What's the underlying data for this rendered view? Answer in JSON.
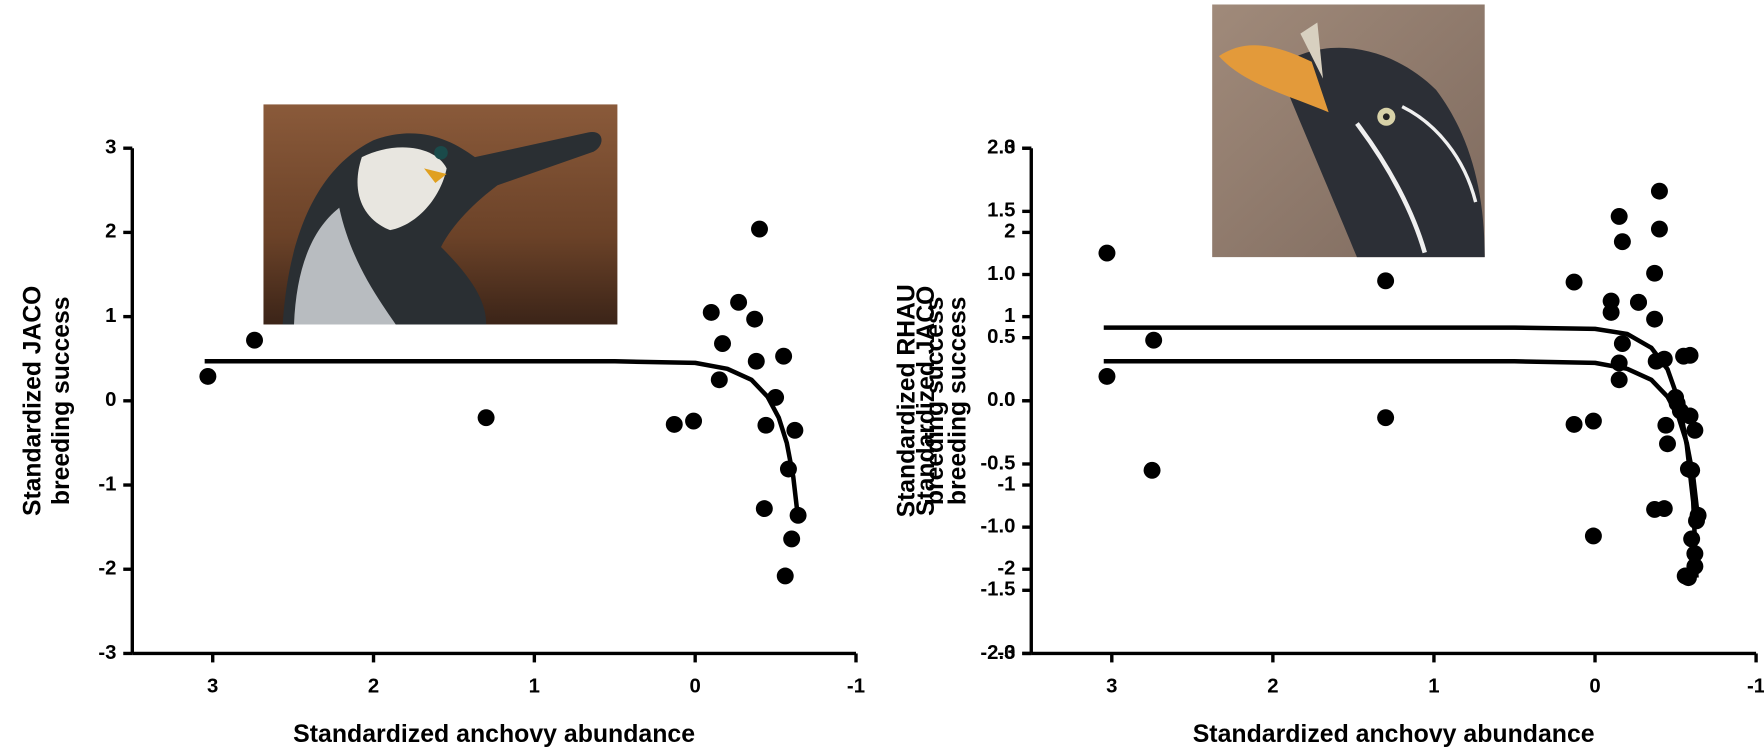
{
  "chart_data": [
    {
      "type": "scatter",
      "xlabel": "Standardized anchovy abundance",
      "ylabel": [
        "Standardized JACO",
        "breeding success"
      ],
      "xlim": [
        3.5,
        -1
      ],
      "xticks": [
        3,
        2,
        1,
        0,
        -1
      ],
      "ylim": [
        -3,
        3
      ],
      "yticks": [
        -3,
        -2,
        -1,
        0,
        1,
        2,
        3
      ],
      "series": [
        {
          "color": "#000000",
          "x": [
            3.03,
            2.74,
            1.3,
            0.13,
            0.01,
            -0.1,
            -0.15,
            -0.17,
            -0.27,
            -0.37,
            -0.4,
            -0.38,
            -0.43,
            -0.44,
            -0.5,
            -0.55,
            -0.56,
            -0.58,
            -0.6,
            -0.62,
            -0.64
          ],
          "values": [
            0.29,
            0.72,
            -0.2,
            -0.28,
            -0.24,
            1.05,
            0.25,
            0.68,
            1.17,
            0.97,
            2.04,
            0.47,
            -1.28,
            -0.29,
            0.04,
            0.53,
            -2.08,
            -0.81,
            -1.64,
            -0.35,
            -1.36
          ],
          "fit": {
            "x": [
              3.05,
              0.5,
              0,
              -0.2,
              -0.35,
              -0.45,
              -0.52,
              -0.57,
              -0.61,
              -0.64
            ],
            "values": [
              0.47,
              0.47,
              0.45,
              0.38,
              0.25,
              0.05,
              -0.2,
              -0.5,
              -0.9,
              -1.4
            ]
          }
        }
      ]
    },
    {
      "type": "scatter",
      "xlabel": "Standardized anchovy abundance",
      "ylabel": [
        "Standardized RHAU",
        "breeding success"
      ],
      "y2label": [
        "Standardized JACO",
        "breeding success"
      ],
      "xlim": [
        3.5,
        -1
      ],
      "xticks": [
        3,
        2,
        1,
        0,
        -1
      ],
      "ylim": [
        -2,
        2
      ],
      "yticks": [
        {
          "value": -2,
          "label": "-2.0"
        },
        -1.5,
        {
          "value": -1,
          "label": "-1.0"
        },
        -0.5,
        {
          "value": 0,
          "label": "0.0"
        },
        0.5,
        {
          "value": 1,
          "label": "1.0"
        },
        1.5,
        {
          "value": 2,
          "label": "2.0"
        }
      ],
      "y2lim": [
        -3,
        3
      ],
      "y2ticks": [
        -3,
        -2,
        -1,
        0,
        1,
        2,
        3
      ],
      "series": [
        {
          "color": "#000000",
          "x": [
            3.03,
            2.75,
            1.3,
            0.13,
            0.01,
            -0.1,
            -0.15,
            -0.15,
            -0.17,
            -0.27,
            -0.37,
            -0.4,
            -0.43,
            -0.37,
            -0.45,
            -0.51,
            -0.59,
            -0.58,
            -0.53,
            -0.59,
            -0.62,
            -0.62,
            -0.6,
            -0.63
          ],
          "values": [
            1.17,
            -0.55,
            0.95,
            0.94,
            -1.07,
            0.79,
            0.3,
            1.46,
            1.26,
            0.78,
            1.01,
            1.66,
            0.33,
            -0.86,
            -0.34,
            -0.02,
            0.36,
            -1.4,
            -0.08,
            -0.12,
            -1.21,
            -1.31,
            -0.55,
            -0.95
          ],
          "fit": {
            "x": [
              3.05,
              0.5,
              0,
              -0.2,
              -0.35,
              -0.45,
              -0.52,
              -0.57,
              -0.61,
              -0.63
            ],
            "values": [
              0.58,
              0.58,
              0.57,
              0.53,
              0.42,
              0.25,
              0.0,
              -0.35,
              -0.8,
              -1.4
            ]
          }
        },
        {
          "color": "#000000",
          "axis": "y2",
          "x": [
            3.03,
            2.74,
            1.3,
            0.13,
            0.01,
            -0.1,
            -0.15,
            -0.17,
            -0.27,
            -0.37,
            -0.4,
            -0.38,
            -0.43,
            -0.44,
            -0.5,
            -0.55,
            -0.56,
            -0.58,
            -0.6,
            -0.62,
            -0.64
          ],
          "values": [
            0.29,
            0.72,
            -0.2,
            -0.28,
            -0.24,
            1.05,
            0.25,
            0.68,
            1.17,
            0.97,
            2.04,
            0.47,
            -1.28,
            -0.29,
            0.04,
            0.53,
            -2.08,
            -0.81,
            -1.64,
            -0.35,
            -1.36
          ],
          "fit": {
            "x": [
              3.05,
              0.5,
              0,
              -0.2,
              -0.35,
              -0.45,
              -0.52,
              -0.57,
              -0.61,
              -0.64
            ],
            "values": [
              0.47,
              0.47,
              0.45,
              0.38,
              0.25,
              0.05,
              -0.2,
              -0.5,
              -0.9,
              -1.4
            ]
          }
        }
      ]
    }
  ]
}
